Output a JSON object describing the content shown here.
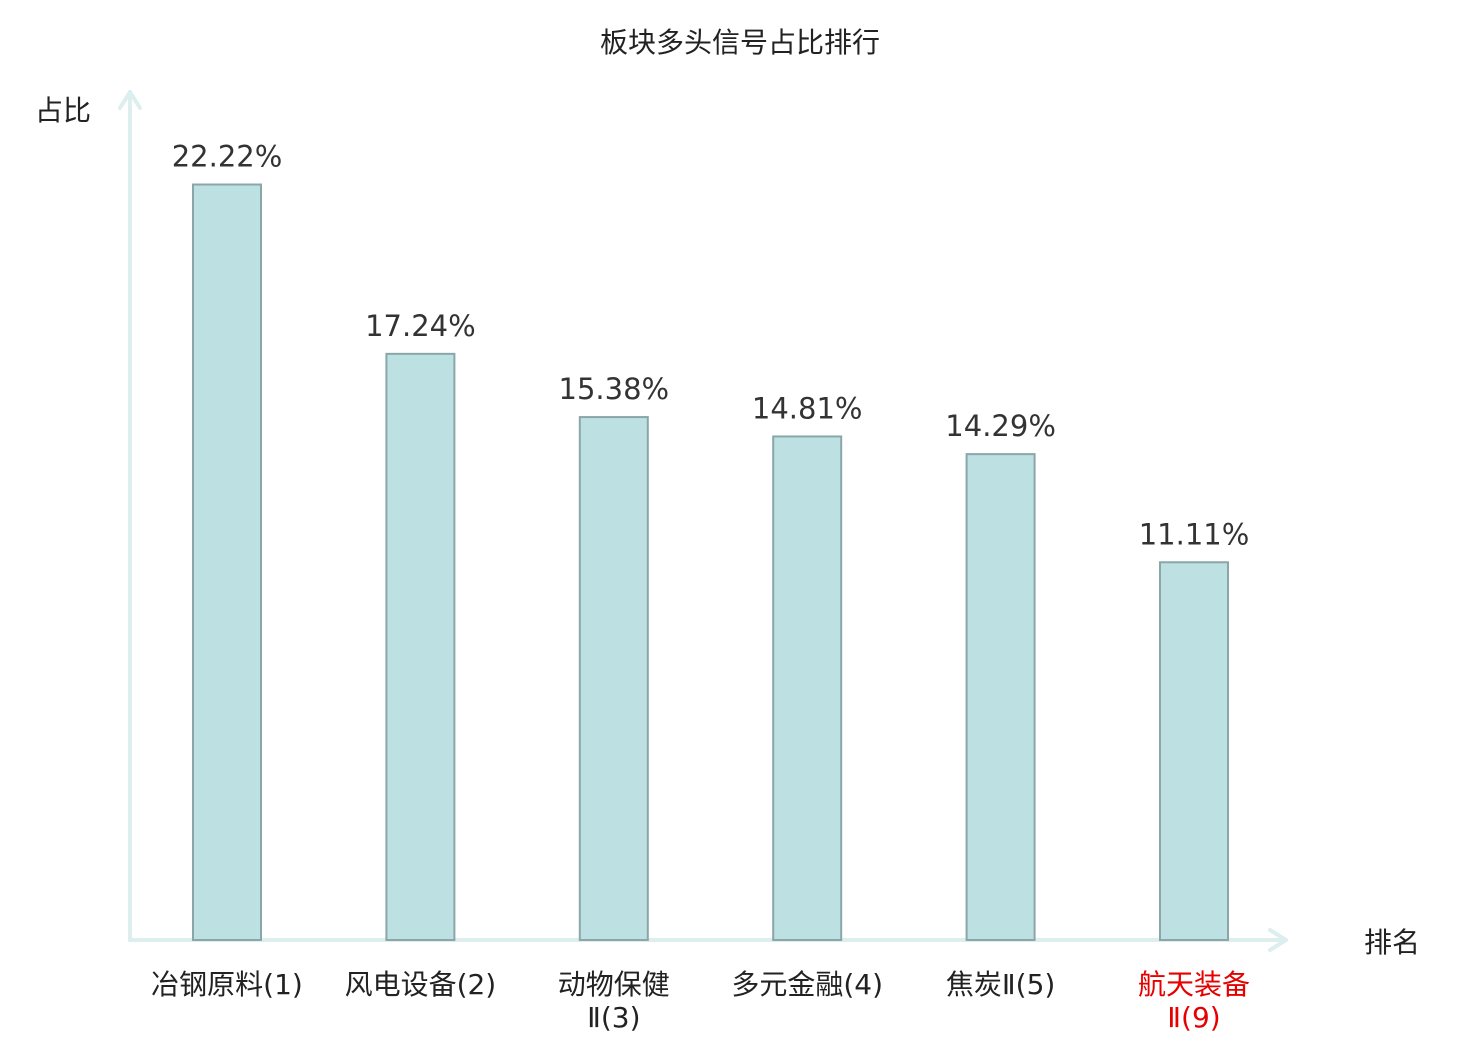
{
  "chart_data": {
    "type": "bar",
    "title": "板块多头信号占比排行",
    "ylabel": "占比",
    "xlabel": "排名",
    "ylim": [
      0,
      25
    ],
    "grid": false,
    "categories": [
      {
        "lines": [
          "冶钢原料(1)"
        ],
        "highlight": false
      },
      {
        "lines": [
          "风电设备(2)"
        ],
        "highlight": false
      },
      {
        "lines": [
          "动物保健",
          "Ⅱ(3)"
        ],
        "highlight": false
      },
      {
        "lines": [
          "多元金融(4)"
        ],
        "highlight": false
      },
      {
        "lines": [
          "焦炭Ⅱ(5)"
        ],
        "highlight": false
      },
      {
        "lines": [
          "航天装备",
          "Ⅱ(9)"
        ],
        "highlight": true
      }
    ],
    "values": [
      22.22,
      17.24,
      15.38,
      14.81,
      14.29,
      11.11
    ],
    "value_labels": [
      "22.22%",
      "17.24%",
      "15.38%",
      "14.81%",
      "14.29%",
      "11.11%"
    ]
  },
  "colors": {
    "bar_fill": "#bde0e3",
    "bar_stroke": "#8aa6a8",
    "axis": "#dcefee",
    "text": "#222222",
    "value_text": "#333333",
    "highlight": "#e60000"
  }
}
